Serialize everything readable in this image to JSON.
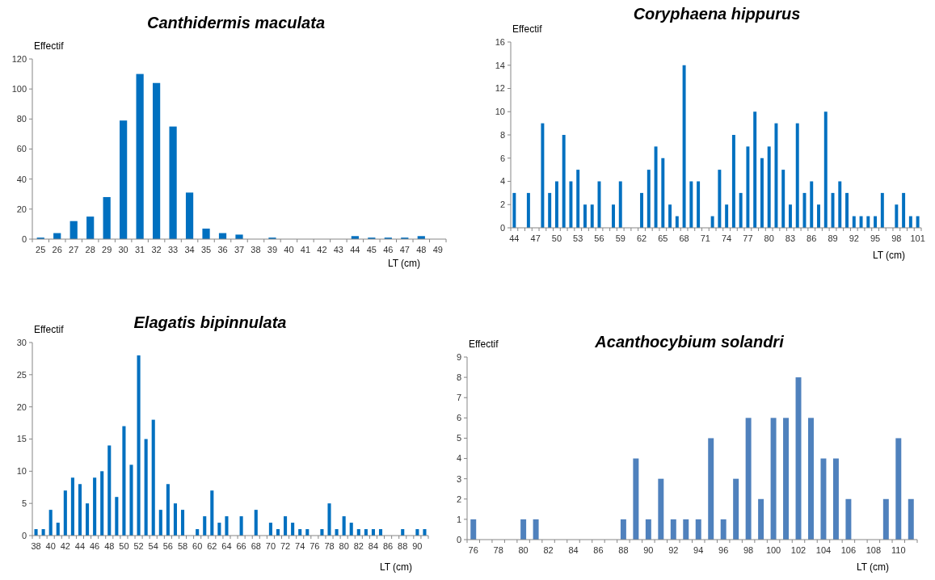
{
  "chart_data": [
    {
      "type": "bar",
      "title": "Canthidermis maculata",
      "ylabel": "Effectif",
      "xlabel": "LT (cm)",
      "color": "#0070c0",
      "grid": false,
      "ylim": [
        0,
        120
      ],
      "yticks": [
        0,
        20,
        40,
        60,
        80,
        100,
        120
      ],
      "categories": [
        "25",
        "26",
        "27",
        "28",
        "29",
        "30",
        "31",
        "32",
        "33",
        "34",
        "35",
        "36",
        "37",
        "38",
        "39",
        "40",
        "41",
        "42",
        "43",
        "44",
        "45",
        "46",
        "47",
        "48",
        "49"
      ],
      "values": [
        1,
        4,
        12,
        15,
        28,
        79,
        110,
        104,
        75,
        31,
        7,
        4,
        3,
        0,
        1,
        0,
        0,
        0,
        0,
        2,
        1,
        1,
        1,
        2,
        0
      ]
    },
    {
      "type": "bar",
      "title": "Coryphaena hippurus",
      "ylabel": "Effectif",
      "xlabel": "LT (cm)",
      "color": "#0070c0",
      "grid": false,
      "ylim": [
        0,
        16
      ],
      "yticks": [
        0,
        2,
        4,
        6,
        8,
        10,
        12,
        14,
        16
      ],
      "categories": [
        "44",
        null,
        null,
        "47",
        null,
        null,
        "50",
        null,
        null,
        "53",
        null,
        null,
        "56",
        null,
        null,
        "59",
        null,
        null,
        "62",
        null,
        null,
        "65",
        null,
        null,
        "68",
        null,
        null,
        "71",
        null,
        null,
        "74",
        null,
        null,
        "77",
        null,
        null,
        "80",
        null,
        null,
        "83",
        null,
        null,
        "86",
        null,
        null,
        "89",
        null,
        null,
        "92",
        null,
        null,
        "95",
        null,
        null,
        "98",
        null,
        null,
        "101"
      ],
      "values": [
        3,
        0,
        3,
        0,
        9,
        3,
        4,
        8,
        4,
        5,
        2,
        2,
        4,
        0,
        2,
        4,
        0,
        0,
        3,
        5,
        7,
        6,
        2,
        1,
        14,
        4,
        4,
        0,
        1,
        5,
        2,
        8,
        3,
        7,
        10,
        6,
        7,
        9,
        5,
        2,
        9,
        3,
        4,
        2,
        10,
        3,
        4,
        3,
        1,
        1,
        1,
        1,
        3,
        0,
        2,
        3,
        1,
        1
      ]
    },
    {
      "type": "bar",
      "title": "Elagatis bipinnulata",
      "ylabel": "Effectif",
      "xlabel": "LT (cm)",
      "color": "#0070c0",
      "grid": false,
      "ylim": [
        0,
        30
      ],
      "yticks": [
        0,
        5,
        10,
        15,
        20,
        25,
        30
      ],
      "categories": [
        "38",
        null,
        "40",
        null,
        "42",
        null,
        "44",
        null,
        "46",
        null,
        "48",
        null,
        "50",
        null,
        "52",
        null,
        "54",
        null,
        "56",
        null,
        "58",
        null,
        "60",
        null,
        "62",
        null,
        "64",
        null,
        "66",
        null,
        "68",
        null,
        "70",
        null,
        "72",
        null,
        "74",
        null,
        "76",
        null,
        "78",
        null,
        "80",
        null,
        "82",
        null,
        "84",
        null,
        "86",
        null,
        "88",
        null,
        "90",
        null
      ],
      "values": [
        1,
        1,
        4,
        2,
        7,
        9,
        8,
        5,
        9,
        10,
        14,
        6,
        17,
        11,
        28,
        15,
        18,
        4,
        8,
        5,
        4,
        0,
        1,
        3,
        7,
        2,
        3,
        0,
        3,
        0,
        4,
        0,
        2,
        1,
        3,
        2,
        1,
        1,
        0,
        1,
        5,
        1,
        3,
        2,
        1,
        1,
        1,
        1,
        0,
        0,
        1,
        0,
        1,
        1
      ]
    },
    {
      "type": "bar",
      "title": "Acanthocybium solandri",
      "ylabel": "Effectif",
      "xlabel": "LT (cm)",
      "color": "#4f81bd",
      "grid": false,
      "ylim": [
        0,
        9
      ],
      "yticks": [
        0,
        1,
        2,
        3,
        4,
        5,
        6,
        7,
        8,
        9
      ],
      "categories": [
        "76",
        null,
        "78",
        null,
        "80",
        null,
        "82",
        null,
        "84",
        null,
        "86",
        null,
        "88",
        null,
        "90",
        null,
        "92",
        null,
        "94",
        null,
        "96",
        null,
        "98",
        null,
        "100",
        null,
        "102",
        null,
        "104",
        null,
        "106",
        null,
        "108",
        null,
        "110",
        null
      ],
      "values": [
        1,
        0,
        0,
        0,
        1,
        1,
        0,
        0,
        0,
        0,
        0,
        0,
        1,
        4,
        1,
        3,
        1,
        1,
        1,
        5,
        1,
        3,
        6,
        2,
        6,
        6,
        8,
        6,
        4,
        4,
        2,
        0,
        0,
        2,
        5,
        2
      ]
    }
  ]
}
